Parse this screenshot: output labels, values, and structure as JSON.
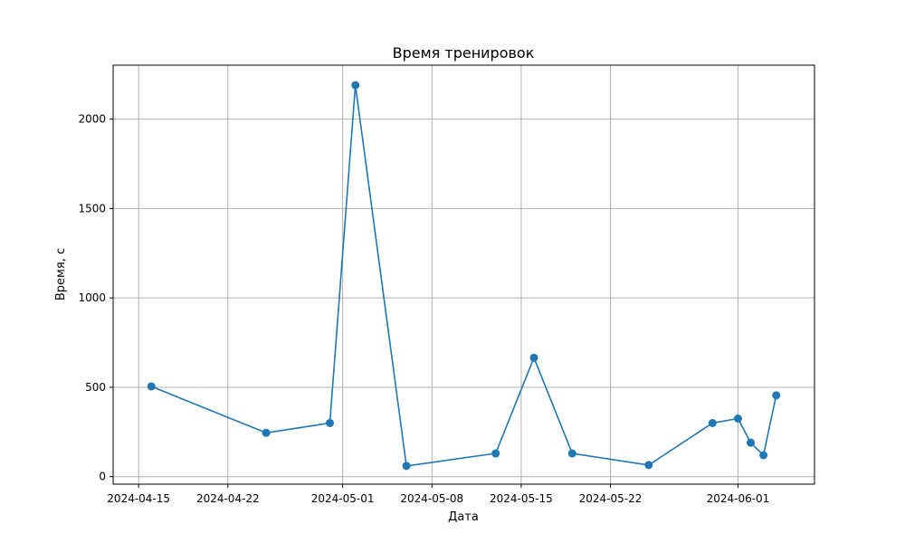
{
  "chart_data": {
    "type": "line",
    "title": "Время тренировок",
    "xlabel": "Дата",
    "ylabel": "Время, с",
    "x_type": "date",
    "xlim": [
      "2024-04-13",
      "2024-06-07"
    ],
    "ylim": [
      -42,
      2302
    ],
    "grid": true,
    "x_ticks": [
      "2024-04-15",
      "2024-04-22",
      "2024-05-01",
      "2024-05-08",
      "2024-05-15",
      "2024-05-22",
      "2024-06-01"
    ],
    "y_ticks": [
      0,
      500,
      1000,
      1500,
      2000
    ],
    "series": [
      {
        "color": "#1f77b4",
        "marker": "circle",
        "x": [
          "2024-04-16",
          "2024-04-25",
          "2024-04-30",
          "2024-05-02",
          "2024-05-06",
          "2024-05-13",
          "2024-05-16",
          "2024-05-19",
          "2024-05-25",
          "2024-05-30",
          "2024-06-01",
          "2024-06-02",
          "2024-06-03",
          "2024-06-04"
        ],
        "y": [
          505,
          245,
          300,
          2190,
          60,
          130,
          665,
          130,
          65,
          300,
          325,
          190,
          120,
          455
        ]
      }
    ]
  }
}
